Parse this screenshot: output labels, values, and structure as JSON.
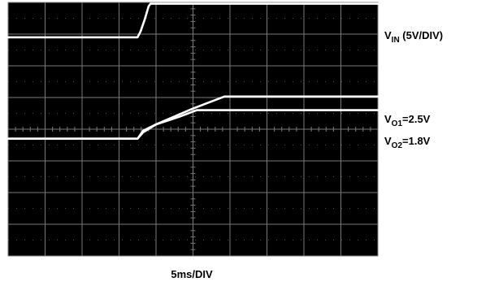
{
  "chart_data": {
    "type": "line",
    "title": "",
    "xlabel": "5ms/DIV",
    "ylabel": "",
    "grid": true,
    "x_divisions": 10,
    "y_divisions": 8,
    "xlim": [
      0,
      10
    ],
    "ylim": [
      0,
      8
    ],
    "colors": {
      "background": "#000000",
      "trace": "#ffffff",
      "grid": "#7a7a7a"
    },
    "series": [
      {
        "label_main": "V",
        "label_sub": "IN",
        "label_rest": " (5V/DIV)",
        "x": [
          0,
          3.5,
          3.58,
          3.7,
          3.8,
          3.85,
          10
        ],
        "y": [
          6.9,
          6.9,
          7.08,
          7.48,
          7.88,
          7.96,
          7.96
        ]
      },
      {
        "label_main": "V",
        "label_sub": "O1",
        "label_rest": "=2.5V",
        "x": [
          0,
          3.5,
          3.65,
          4.0,
          5.0,
          5.85,
          6.2,
          10
        ],
        "y": [
          3.7,
          3.7,
          3.9,
          4.15,
          4.65,
          5.03,
          5.03,
          5.03
        ]
      },
      {
        "label_main": "V",
        "label_sub": "O2",
        "label_rest": "=1.8V",
        "x": [
          0,
          3.5,
          3.65,
          4.0,
          4.6,
          5.1,
          5.25,
          10
        ],
        "y": [
          3.7,
          3.7,
          3.95,
          4.15,
          4.38,
          4.6,
          4.6,
          4.6
        ]
      }
    ]
  }
}
